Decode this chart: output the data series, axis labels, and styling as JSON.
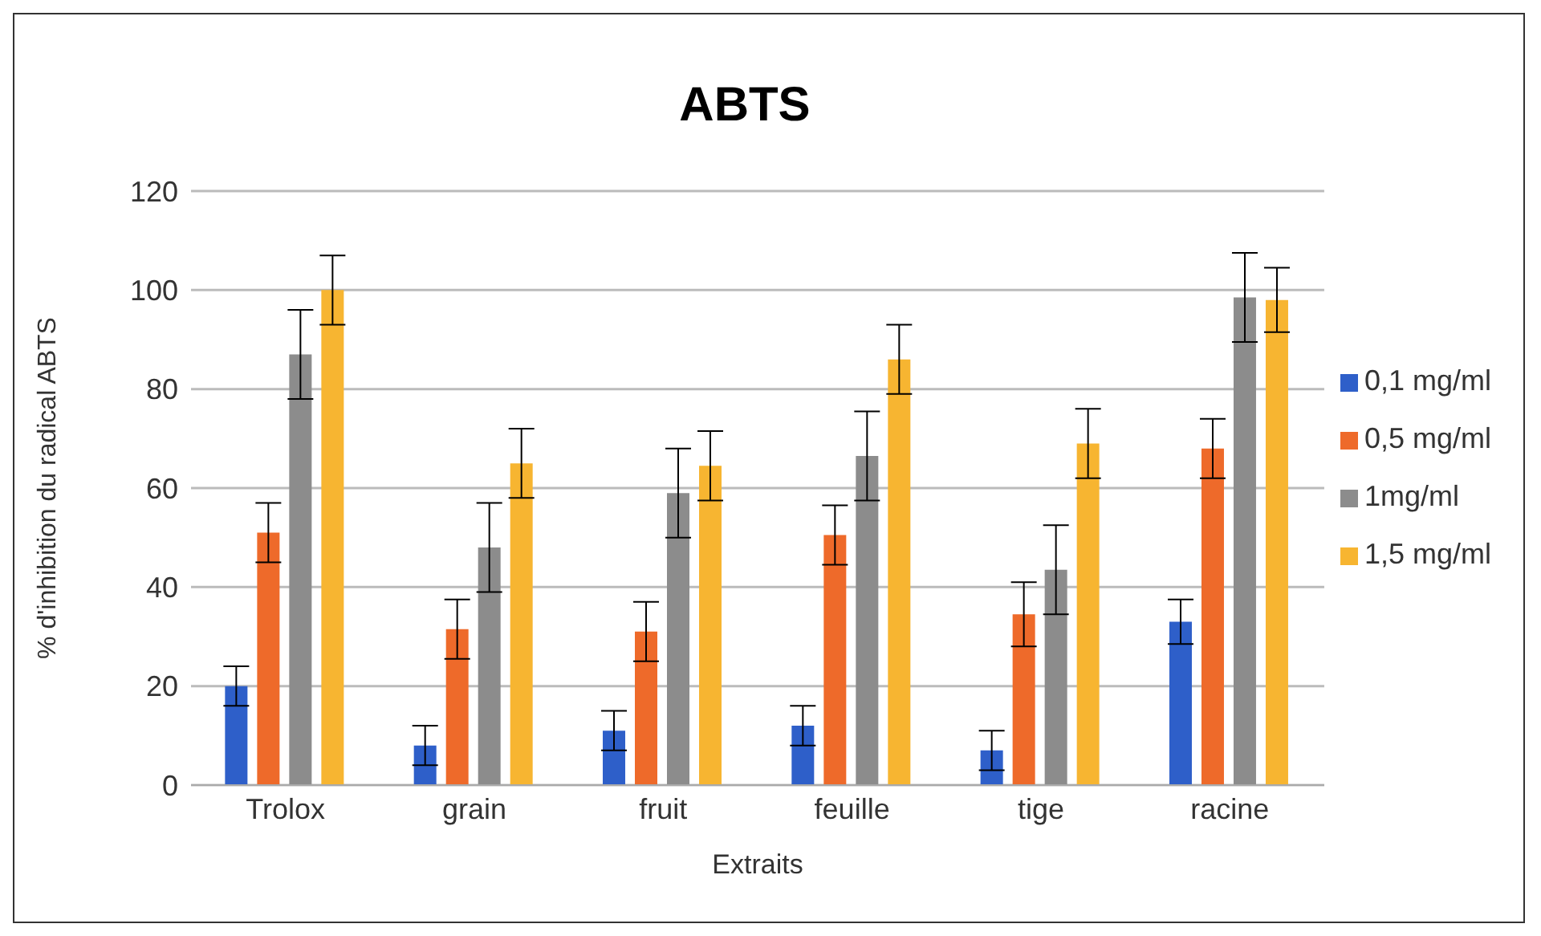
{
  "chart_data": {
    "type": "bar",
    "title": "ABTS",
    "xlabel": "Extraits",
    "ylabel": "% d'inhibition du radical ABTS",
    "categories": [
      "Trolox",
      "grain",
      "fruit",
      "feuille",
      "tige",
      "racine"
    ],
    "series": [
      {
        "name": "0,1 mg/ml",
        "color": "#2e5fc9",
        "values": [
          20,
          8,
          11,
          12,
          7,
          33
        ],
        "errors": [
          4,
          4,
          4,
          4,
          4,
          4.5
        ]
      },
      {
        "name": "0,5 mg/ml",
        "color": "#ee6a2a",
        "values": [
          51,
          31.5,
          31,
          50.5,
          34.5,
          68
        ],
        "errors": [
          6,
          6,
          6,
          6,
          6.5,
          6
        ]
      },
      {
        "name": "1mg/ml",
        "color": "#8c8c8c",
        "values": [
          87,
          48,
          59,
          66.5,
          43.5,
          98.5
        ],
        "errors": [
          9,
          9,
          9,
          9,
          9,
          9
        ]
      },
      {
        "name": "1,5 mg/ml",
        "color": "#f7b531",
        "values": [
          100,
          65,
          64.5,
          86,
          69,
          98
        ],
        "errors": [
          7,
          7,
          7,
          7,
          7,
          6.5
        ]
      }
    ],
    "ylim": [
      0,
      120
    ],
    "yticks": [
      0,
      20,
      40,
      60,
      80,
      100,
      120
    ],
    "grid": "y",
    "legend": "right"
  }
}
